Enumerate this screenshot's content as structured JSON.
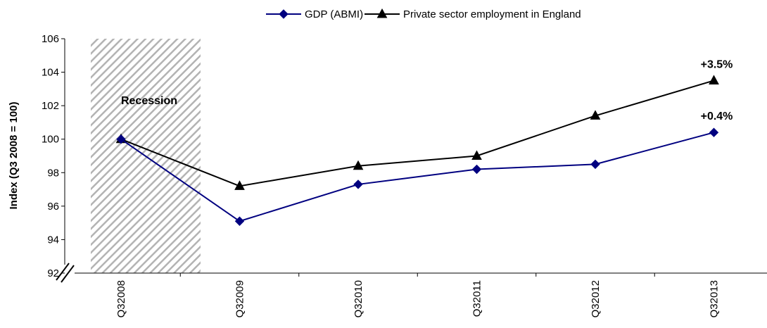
{
  "chart_data": {
    "type": "line",
    "title": "",
    "xlabel": "",
    "ylabel": "Index (Q3 2008 = 100)",
    "ylim": [
      92,
      106
    ],
    "yticks": [
      92,
      94,
      96,
      98,
      100,
      102,
      104,
      106
    ],
    "categories": [
      "Q32008",
      "Q32009",
      "Q32010",
      "Q32011",
      "Q32012",
      "Q32013"
    ],
    "series": [
      {
        "name": "GDP (ABMI)",
        "color": "#000080",
        "marker": "diamond",
        "values": [
          100.0,
          95.1,
          97.3,
          98.2,
          98.5,
          100.4
        ]
      },
      {
        "name": "Private sector employment in England",
        "color": "#000000",
        "marker": "triangle",
        "values": [
          100.0,
          97.2,
          98.4,
          99.0,
          101.4,
          103.5
        ]
      }
    ],
    "shaded_region": {
      "label": "Recession",
      "from": "Q32008",
      "to_fraction_of_next": 0.38,
      "pattern": "diagonal-hatch",
      "color": "#b3b3b3"
    },
    "annotations": [
      {
        "text": "+3.5%",
        "series": 1,
        "category": "Q32013"
      },
      {
        "text": "+0.4%",
        "series": 0,
        "category": "Q32013"
      }
    ],
    "axis_break": true,
    "grid": false,
    "legend_position": "top"
  }
}
